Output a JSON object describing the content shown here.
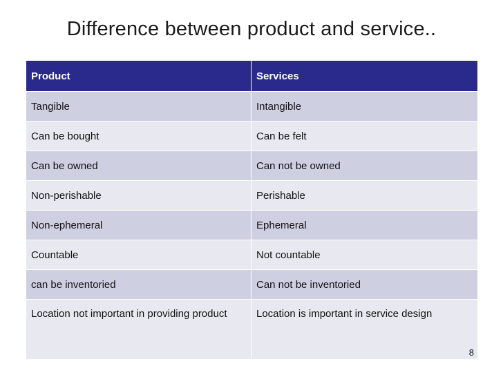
{
  "slide": {
    "title": "Difference between product and service..",
    "page_number": "8"
  },
  "table": {
    "headers": [
      "Product",
      "Services"
    ],
    "rows": [
      [
        "Tangible",
        "Intangible"
      ],
      [
        "Can be bought",
        "Can be felt"
      ],
      [
        "Can be owned",
        "Can not be owned"
      ],
      [
        "Non-perishable",
        "Perishable"
      ],
      [
        "Non-ephemeral",
        "Ephemeral"
      ],
      [
        "Countable",
        "Not countable"
      ],
      [
        "can be inventoried",
        "Can not be inventoried"
      ],
      [
        "Location not important in providing product",
        "Location is important in service design"
      ]
    ]
  },
  "colors": {
    "header_bg": "#2a2a8c",
    "row_dark": "#cfcfe2",
    "row_light": "#e8e8f1"
  }
}
